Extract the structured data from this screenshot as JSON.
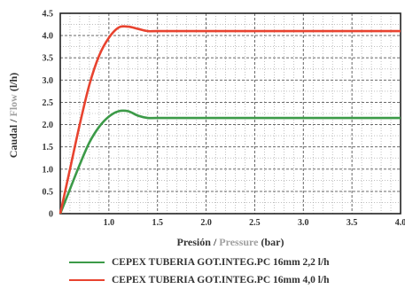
{
  "chart_data": {
    "type": "line",
    "xlabel": {
      "part1": "Presión",
      "sep": " / ",
      "part2": "Pressure",
      "part3": " (bar)"
    },
    "ylabel": {
      "part1": "Caudal",
      "sep": " / ",
      "part2": "Flow",
      "part3": " (l/h)"
    },
    "xlim": [
      0.5,
      4.0
    ],
    "ylim": [
      0,
      4.5
    ],
    "xticks": [
      "1.0",
      "1.5",
      "2.0",
      "2.5",
      "3.0",
      "3.5",
      "4.0"
    ],
    "yticks": [
      "0",
      "0.5",
      "1.0",
      "1.5",
      "2.0",
      "2.5",
      "3.0",
      "3.5",
      "4.0",
      "4.5"
    ],
    "grid": true,
    "legend_position": "bottom",
    "series": [
      {
        "name": "CEPEX TUBERIA GOT.INTEG.PC 16mm 2,2 l/h",
        "color": "#3c9a48",
        "x": [
          0.5,
          0.6,
          0.7,
          0.8,
          0.9,
          1.0,
          1.1,
          1.2,
          1.3,
          1.4,
          1.5,
          2.0,
          3.0,
          4.0
        ],
        "y": [
          0,
          0.55,
          1.1,
          1.6,
          1.95,
          2.18,
          2.3,
          2.3,
          2.2,
          2.15,
          2.15,
          2.15,
          2.15,
          2.15
        ]
      },
      {
        "name": "CEPEX TUBERIA GOT.INTEG.PC 16mm 4,0 l/h",
        "color": "#e8432f",
        "x": [
          0.5,
          0.6,
          0.7,
          0.8,
          0.9,
          1.0,
          1.1,
          1.2,
          1.3,
          1.4,
          1.5,
          2.0,
          3.0,
          4.0
        ],
        "y": [
          0,
          1.0,
          2.0,
          2.9,
          3.55,
          3.95,
          4.18,
          4.2,
          4.15,
          4.1,
          4.1,
          4.1,
          4.1,
          4.1
        ]
      }
    ]
  }
}
